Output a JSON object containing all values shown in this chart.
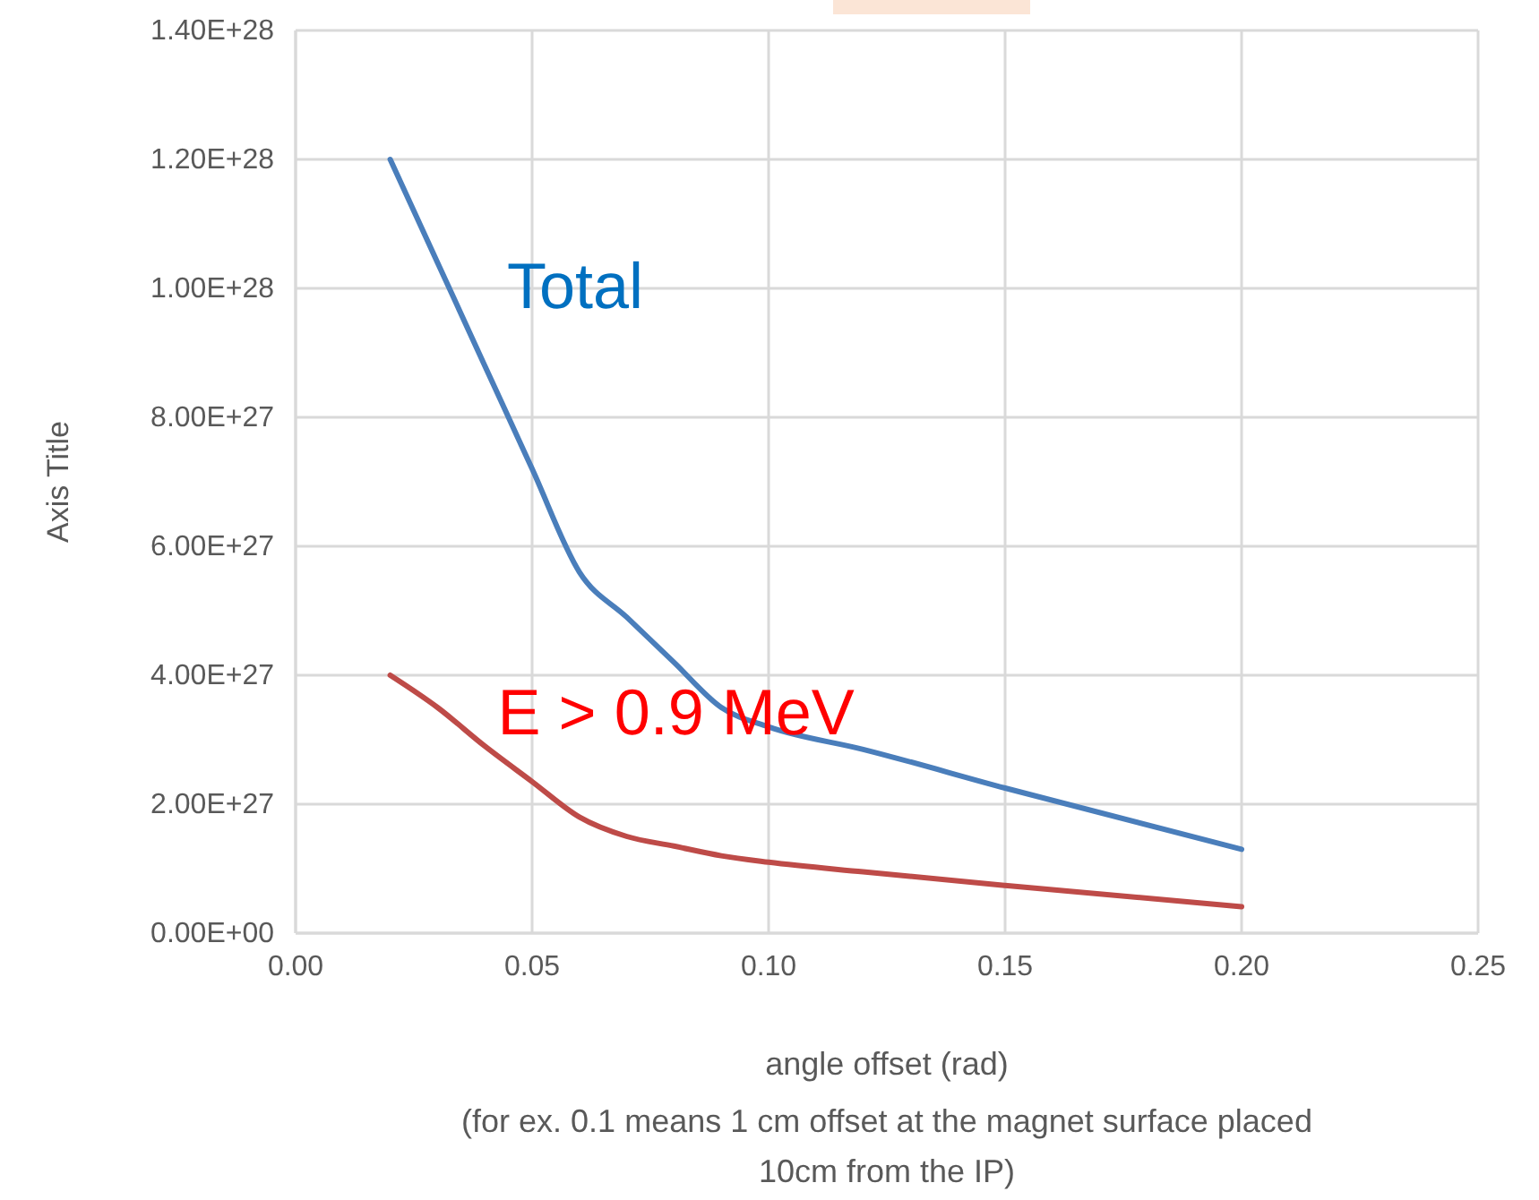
{
  "chart_data": {
    "type": "line",
    "xlabel": "angle offset (rad)",
    "ylabel": "Axis Title",
    "annotations": [
      "(for ex. 0.1 means 1 cm offset at the magnet surface placed 10cm from the IP)"
    ],
    "x": [
      0.02,
      0.03,
      0.04,
      0.05,
      0.06,
      0.07,
      0.08,
      0.09,
      0.1,
      0.12,
      0.15,
      0.2
    ],
    "series": [
      {
        "name": "Total",
        "color": "#4a7ebb",
        "values": [
          1.2e+28,
          1.04e+28,
          8.8e+27,
          7.2e+27,
          5.6e+27,
          4.9e+27,
          4.2e+27,
          3.5e+27,
          3.2e+27,
          2.85e+27,
          2.25e+27,
          1.3e+27
        ]
      },
      {
        "name": "E > 0.9 MeV",
        "color": "#be4b48",
        "values": [
          4e+27,
          3.5e+27,
          2.9e+27,
          2.35e+27,
          1.8e+27,
          1.5e+27,
          1.35e+27,
          1.2e+27,
          1.1e+27,
          9.5e+26,
          7.4e+26,
          4.1e+26
        ]
      }
    ],
    "xlim": [
      0,
      0.25
    ],
    "xticks": [
      {
        "value": 0,
        "label": "0.00"
      },
      {
        "value": 0.05,
        "label": "0.05"
      },
      {
        "value": 0.1,
        "label": "0.10"
      },
      {
        "value": 0.15,
        "label": "0.15"
      },
      {
        "value": 0.2,
        "label": "0.20"
      },
      {
        "value": 0.25,
        "label": "0.25"
      }
    ],
    "ylim": [
      0,
      1.4e+28
    ],
    "yticks": [
      {
        "value": 0,
        "label": "0.00E+00"
      },
      {
        "value": 2e+27,
        "label": "2.00E+27"
      },
      {
        "value": 4e+27,
        "label": "4.00E+27"
      },
      {
        "value": 6e+27,
        "label": "6.00E+27"
      },
      {
        "value": 8e+27,
        "label": "8.00E+27"
      },
      {
        "value": 1e+28,
        "label": "1.00E+28"
      },
      {
        "value": 1.2e+28,
        "label": "1.20E+28"
      },
      {
        "value": 1.4e+28,
        "label": "1.40E+28"
      }
    ],
    "grid": true,
    "marker": "none",
    "line_style": "solid",
    "legend": false
  }
}
